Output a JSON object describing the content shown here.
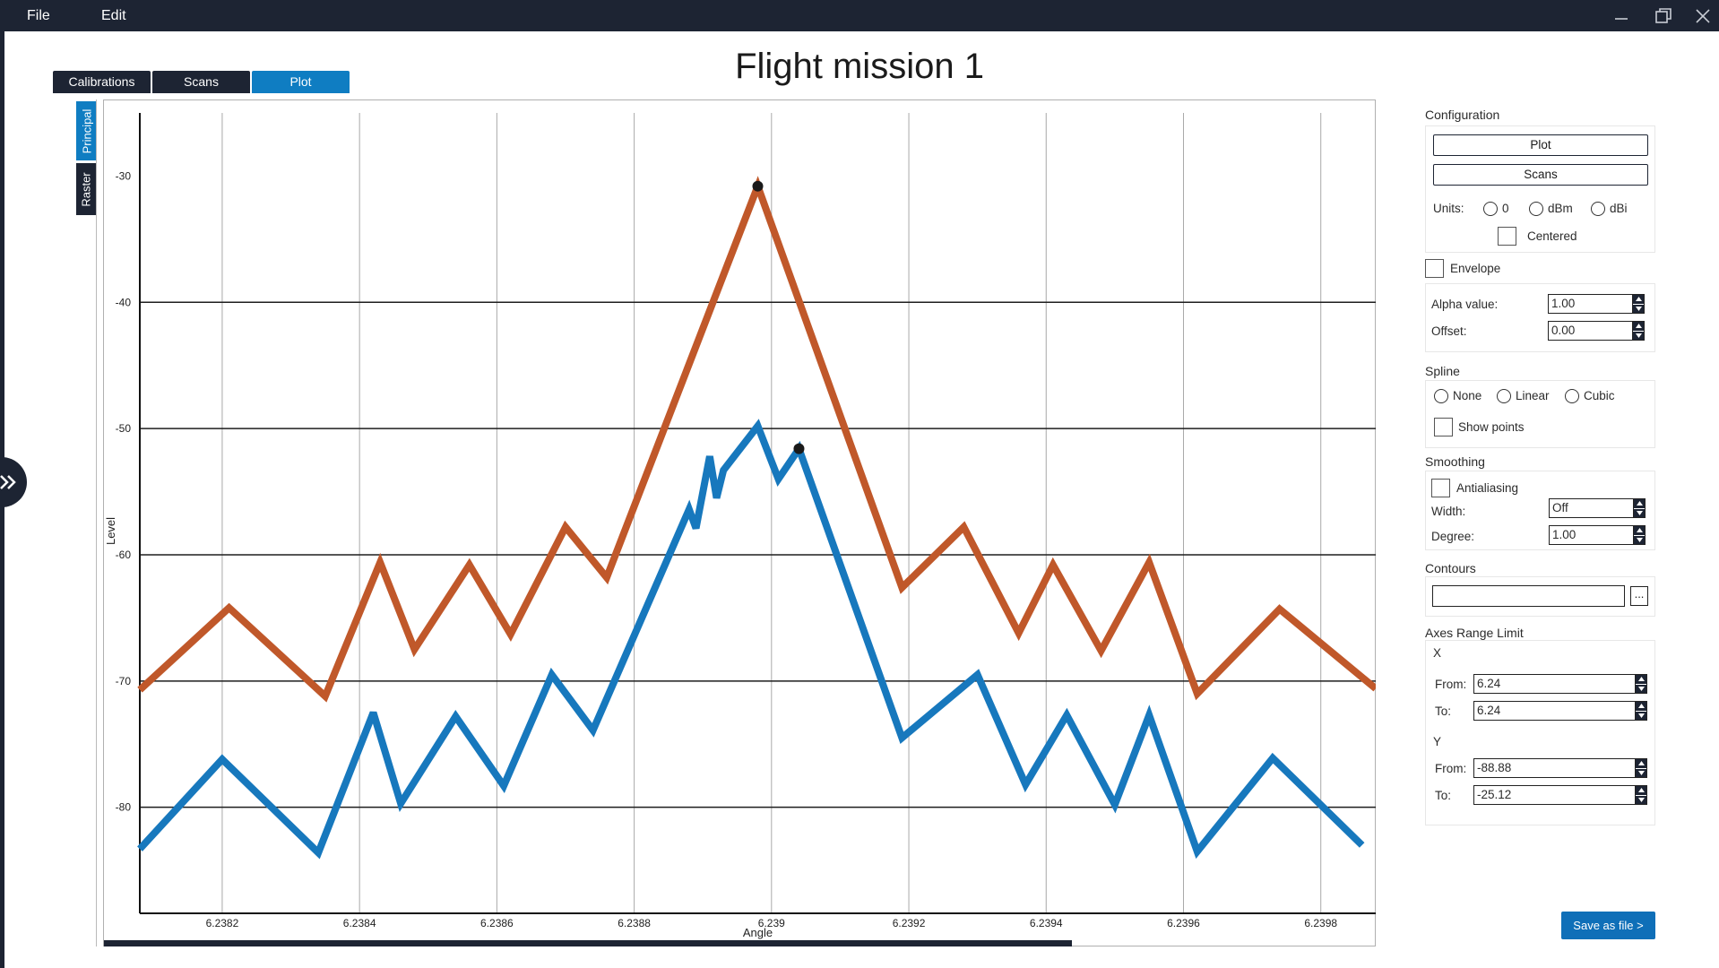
{
  "menu": {
    "file": "File",
    "edit": "Edit"
  },
  "window": {
    "minimize_icon": "minimize-icon",
    "restore_icon": "restore-icon",
    "close_icon": "close-icon"
  },
  "title": "Flight mission 1",
  "tabs": [
    {
      "label": "Calibrations",
      "active": false
    },
    {
      "label": "Scans",
      "active": false
    },
    {
      "label": "Plot",
      "active": true
    }
  ],
  "side_tabs": {
    "principal": "Principal",
    "raster": "Raster"
  },
  "config": {
    "title": "Configuration",
    "plot_button": "Plot",
    "scans_button": "Scans",
    "units_label": "Units:",
    "units_options": [
      "0",
      "dBm",
      "dBi"
    ],
    "centered_label": "Centered",
    "envelope_label": "Envelope",
    "alpha_label": "Alpha value:",
    "alpha_value": "1.00",
    "offset_label": "Offset:",
    "offset_value": "0.00"
  },
  "spline": {
    "title": "Spline",
    "options": [
      "None",
      "Linear",
      "Cubic"
    ],
    "show_points_label": "Show points"
  },
  "smoothing": {
    "title": "Smoothing",
    "antialiasing_label": "Antialiasing",
    "width_label": "Width:",
    "width_value": "Off",
    "degree_label": "Degree:",
    "degree_value": "1.00"
  },
  "contours": {
    "title": "Contours",
    "value": "",
    "browse_label": "..."
  },
  "axes_range": {
    "title": "Axes Range Limit",
    "x_label": "X",
    "x_from_label": "From:",
    "x_from": "6.24",
    "x_to_label": "To:",
    "x_to": "6.24",
    "y_label": "Y",
    "y_from_label": "From:",
    "y_from": "-88.88",
    "y_to_label": "To:",
    "y_to": "-25.12"
  },
  "save_button": "Save as file >",
  "colors": {
    "accent": "#0f7dc2",
    "dark": "#1d2433",
    "series_orange": "#c0582a",
    "series_blue": "#1778bd"
  },
  "chart_data": {
    "type": "line",
    "xlabel": "Angle",
    "ylabel": "Level",
    "xlim": [
      6.23808,
      6.23988
    ],
    "ylim": [
      -88.4,
      -25.0
    ],
    "x_ticks": [
      "6.2382",
      "6.2384",
      "6.2386",
      "6.2388",
      "6.239",
      "6.2392",
      "6.2394",
      "6.2396",
      "6.2398"
    ],
    "y_ticks": [
      "-30",
      "-40",
      "-50",
      "-60",
      "-70",
      "-80"
    ],
    "grid": true,
    "series": [
      {
        "color": "#c0582a",
        "x": [
          6.23808,
          6.23821,
          6.23835,
          6.23843,
          6.23848,
          6.23856,
          6.23862,
          6.2387,
          6.23876,
          6.23898,
          6.23919,
          6.23928,
          6.23936,
          6.23941,
          6.23948,
          6.23955,
          6.23962,
          6.23974,
          6.23988
        ],
        "y": [
          -70.7,
          -64.2,
          -71.2,
          -60.6,
          -67.5,
          -60.8,
          -66.3,
          -57.8,
          -61.8,
          -30.8,
          -62.6,
          -57.8,
          -66.2,
          -60.8,
          -67.6,
          -60.6,
          -71.0,
          -64.3,
          -70.6
        ],
        "markers": [
          [
            6.23898,
            -30.8
          ]
        ]
      },
      {
        "color": "#1778bd",
        "x": [
          6.23808,
          6.2382,
          6.23834,
          6.23842,
          6.23846,
          6.23854,
          6.23861,
          6.23868,
          6.23874,
          6.23888,
          6.23889,
          6.23891,
          6.23892,
          6.23893,
          6.23898,
          6.23901,
          6.23904,
          6.23919,
          6.2393,
          6.23937,
          6.23943,
          6.2395,
          6.23955,
          6.23962,
          6.23973,
          6.23986
        ],
        "y": [
          -83.3,
          -76.2,
          -83.6,
          -72.5,
          -79.7,
          -72.8,
          -78.3,
          -69.5,
          -73.9,
          -56.4,
          -57.9,
          -52.2,
          -55.5,
          -53.3,
          -49.8,
          -54.0,
          -51.6,
          -74.5,
          -69.5,
          -78.2,
          -72.7,
          -79.8,
          -72.7,
          -83.5,
          -76.1,
          -83.0
        ],
        "markers": [
          [
            6.23904,
            -51.6
          ]
        ]
      }
    ]
  }
}
